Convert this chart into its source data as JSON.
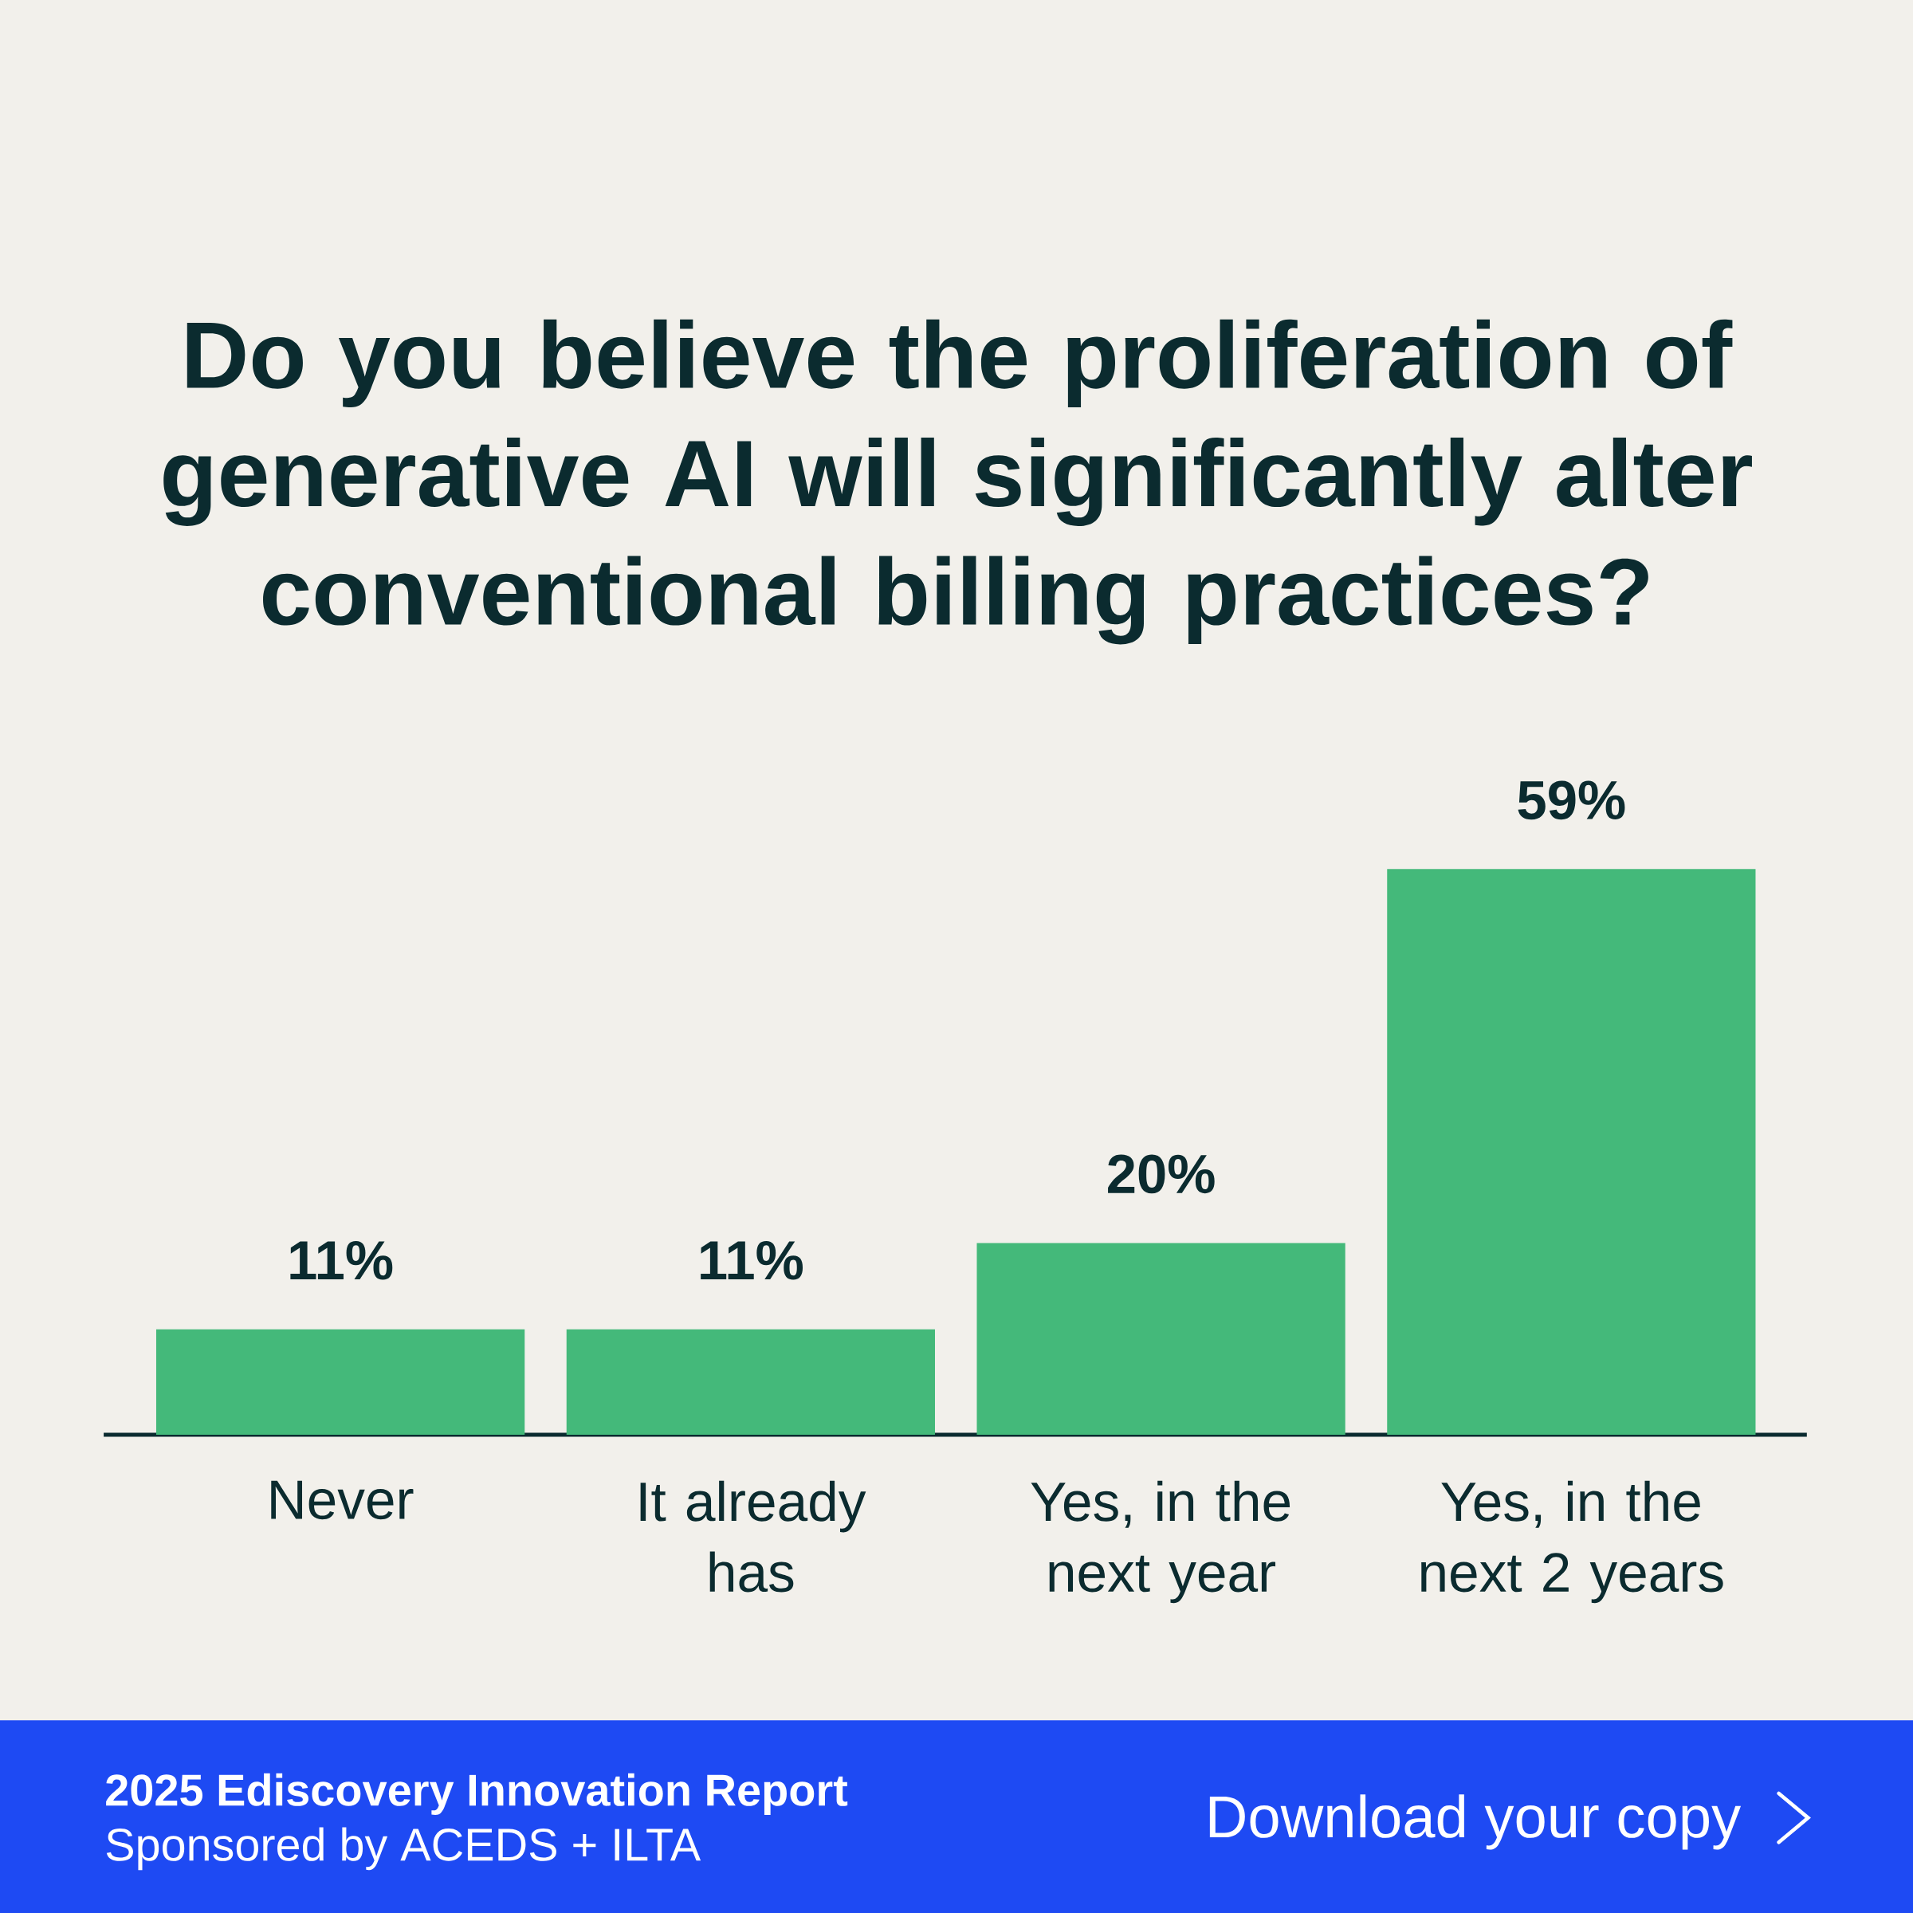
{
  "chart_data": {
    "type": "bar",
    "title": "Do you believe the proliferation of generative AI will significantly alter conventional billing practices?",
    "categories": [
      "Never",
      "It already has",
      "Yes, in the next year",
      "Yes, in the next 2 years"
    ],
    "values": [
      11,
      11,
      20,
      59
    ],
    "value_labels": [
      "11%",
      "11%",
      "20%",
      "59%"
    ],
    "color": "#44b97a",
    "tick_labels": "x",
    "annotations": [
      "2025 Ediscovery Innovation Report",
      "Sponsored by ACEDS + ILTA",
      "Download your copy"
    ]
  }
}
